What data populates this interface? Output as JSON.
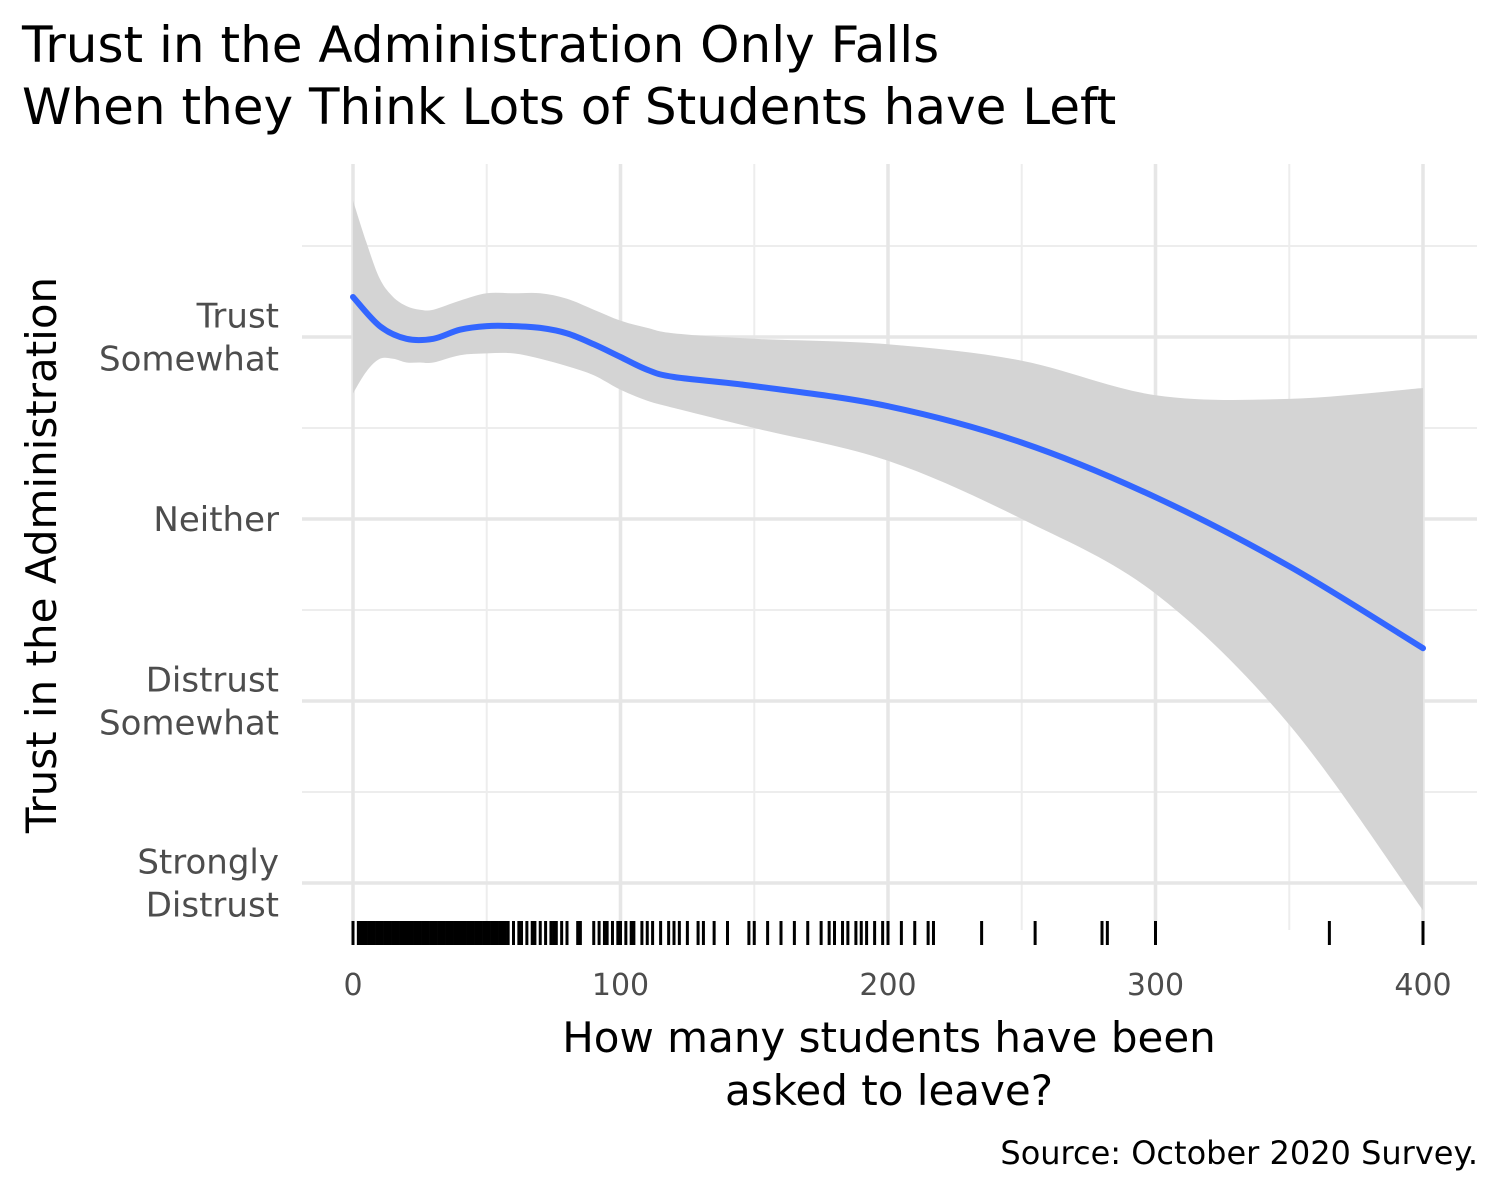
{
  "chart_data": {
    "type": "line",
    "title_lines": [
      "Trust in the Administration Only Falls",
      "When they Think Lots of Students have Left"
    ],
    "xlabel_lines": [
      "How many students have been",
      "asked to leave?"
    ],
    "ylabel": "Trust in the Administration",
    "caption": "Source: October 2020 Survey.",
    "xlim": [
      -20,
      420
    ],
    "ylim": [
      0.75,
      5.3
    ],
    "x_ticks": [
      0,
      100,
      200,
      300,
      400
    ],
    "x_tick_labels": [
      "0",
      "100",
      "200",
      "300",
      "400"
    ],
    "y_ticks": [
      {
        "value": 1,
        "lines": [
          "Strongly",
          "Distrust"
        ]
      },
      {
        "value": 2,
        "lines": [
          "Distrust",
          "Somewhat"
        ]
      },
      {
        "value": 3,
        "lines": [
          "Neither"
        ]
      },
      {
        "value": 4,
        "lines": [
          "Trust",
          "Somewhat"
        ]
      }
    ],
    "grid": true,
    "series": [
      {
        "kind": "smooth-line",
        "color": "#3366ff",
        "x": [
          0,
          10,
          20,
          30,
          40,
          50,
          60,
          70,
          80,
          90,
          100,
          110,
          120,
          150,
          200,
          250,
          300,
          350,
          400
        ],
        "y": [
          4.22,
          4.06,
          3.99,
          3.99,
          4.04,
          4.06,
          4.06,
          4.05,
          4.02,
          3.96,
          3.89,
          3.82,
          3.78,
          3.73,
          3.62,
          3.42,
          3.12,
          2.74,
          2.29
        ]
      },
      {
        "kind": "confidence-band",
        "color": "#d4d4d4",
        "x": [
          0,
          5,
          10,
          15,
          20,
          25,
          30,
          40,
          50,
          60,
          70,
          80,
          90,
          100,
          110,
          120,
          150,
          200,
          250,
          300,
          350,
          400
        ],
        "upper": [
          4.75,
          4.52,
          4.32,
          4.22,
          4.17,
          4.15,
          4.15,
          4.2,
          4.24,
          4.24,
          4.24,
          4.21,
          4.15,
          4.09,
          4.05,
          4.02,
          3.99,
          3.96,
          3.87,
          3.68,
          3.66,
          3.72
        ],
        "lower": [
          3.69,
          3.81,
          3.88,
          3.88,
          3.86,
          3.86,
          3.86,
          3.9,
          3.91,
          3.91,
          3.88,
          3.84,
          3.79,
          3.71,
          3.65,
          3.61,
          3.5,
          3.32,
          3.0,
          2.59,
          1.87,
          0.85
        ]
      }
    ],
    "rug_x": [
      0,
      2,
      3,
      4,
      5,
      6,
      7,
      8,
      9,
      10,
      11,
      12,
      13,
      14,
      15,
      16,
      17,
      18,
      19,
      20,
      21,
      22,
      23,
      24,
      25,
      26,
      27,
      28,
      29,
      30,
      31,
      32,
      33,
      34,
      35,
      36,
      37,
      38,
      39,
      40,
      41,
      42,
      43,
      44,
      45,
      46,
      47,
      48,
      49,
      50,
      51,
      52,
      53,
      54,
      55,
      56,
      57,
      58,
      60,
      62,
      63,
      65,
      67,
      68,
      70,
      72,
      74,
      75,
      76,
      78,
      80,
      84,
      85,
      90,
      92,
      94,
      95,
      97,
      99,
      100,
      102,
      104,
      105,
      108,
      110,
      112,
      115,
      118,
      120,
      122,
      125,
      129,
      131,
      135,
      140,
      148,
      150,
      155,
      160,
      165,
      170,
      175,
      178,
      180,
      183,
      185,
      188,
      190,
      192,
      195,
      198,
      200,
      205,
      210,
      215,
      217,
      235,
      255,
      280,
      282,
      300,
      365,
      400
    ]
  }
}
